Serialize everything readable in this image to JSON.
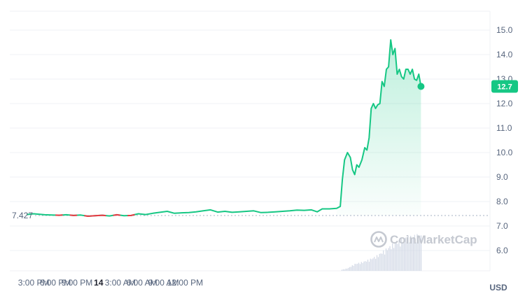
{
  "chart_data": {
    "type": "line",
    "x_ticks": [
      "3:00 PM",
      "6:00 PM",
      "9:00 PM",
      "14",
      "3:00 AM",
      "6:00 AM",
      "9:00 AM",
      "12:00 PM"
    ],
    "y_ticks": [
      "15.0",
      "14.0",
      "13.0",
      "12.0",
      "11.0",
      "10.0",
      "9.0",
      "8.0",
      "7.0",
      "6.0"
    ],
    "ylim": [
      5.0,
      15.9
    ],
    "unit_label": "USD",
    "reference_value": 7.427,
    "reference_label": "7.427",
    "current_value": 12.7,
    "current_label": "12.7",
    "watermark": "CoinMarketCap",
    "grid": true,
    "colors": {
      "up": "#16c784",
      "down": "#ea3943",
      "text": "#58667e",
      "grid": "#eff2f5"
    },
    "series": [
      {
        "values": [
          [
            14.5,
            7.47
          ],
          [
            15.5,
            7.5
          ],
          [
            17,
            7.46
          ],
          [
            18,
            7.45
          ],
          [
            19,
            7.44
          ],
          [
            20,
            7.46
          ],
          [
            21,
            7.43
          ],
          [
            22,
            7.45
          ],
          [
            23,
            7.4
          ],
          [
            24,
            7.42
          ],
          [
            25,
            7.44
          ],
          [
            26,
            7.41
          ],
          [
            27,
            7.46
          ],
          [
            28,
            7.42
          ],
          [
            29,
            7.43
          ],
          [
            30,
            7.5
          ],
          [
            31,
            7.47
          ],
          [
            32,
            7.52
          ],
          [
            33,
            7.56
          ],
          [
            34,
            7.6
          ],
          [
            35,
            7.52
          ],
          [
            36,
            7.54
          ],
          [
            37,
            7.55
          ],
          [
            38,
            7.58
          ],
          [
            39,
            7.62
          ],
          [
            40,
            7.66
          ],
          [
            41,
            7.57
          ],
          [
            42,
            7.6
          ],
          [
            43,
            7.56
          ],
          [
            44,
            7.58
          ],
          [
            45,
            7.6
          ],
          [
            46,
            7.62
          ],
          [
            47,
            7.55
          ],
          [
            48,
            7.56
          ],
          [
            49,
            7.58
          ],
          [
            50,
            7.6
          ],
          [
            51,
            7.62
          ],
          [
            52,
            7.65
          ],
          [
            53,
            7.64
          ],
          [
            54,
            7.66
          ],
          [
            54.8,
            7.58
          ],
          [
            55.5,
            7.7
          ],
          [
            56.5,
            7.7
          ],
          [
            57.5,
            7.72
          ],
          [
            58,
            7.8
          ],
          [
            58.3,
            8.9
          ],
          [
            58.6,
            9.7
          ],
          [
            59,
            10.0
          ],
          [
            59.4,
            9.8
          ],
          [
            59.7,
            9.3
          ],
          [
            60,
            9.1
          ],
          [
            60.3,
            9.5
          ],
          [
            60.6,
            9.4
          ],
          [
            61,
            9.7
          ],
          [
            61.4,
            10.2
          ],
          [
            61.7,
            10.1
          ],
          [
            62,
            10.6
          ],
          [
            62.3,
            11.8
          ],
          [
            62.6,
            12.0
          ],
          [
            62.9,
            11.8
          ],
          [
            63.2,
            11.95
          ],
          [
            63.5,
            12.0
          ],
          [
            63.8,
            12.9
          ],
          [
            64.1,
            12.7
          ],
          [
            64.4,
            13.4
          ],
          [
            64.7,
            13.5
          ],
          [
            65,
            14.6
          ],
          [
            65.3,
            14.0
          ],
          [
            65.6,
            14.25
          ],
          [
            65.9,
            13.2
          ],
          [
            66.2,
            13.4
          ],
          [
            66.5,
            13.1
          ],
          [
            66.8,
            13.0
          ],
          [
            67.1,
            13.4
          ],
          [
            67.4,
            13.4
          ],
          [
            67.7,
            13.2
          ],
          [
            68,
            13.4
          ],
          [
            68.3,
            13.0
          ],
          [
            68.6,
            12.95
          ],
          [
            68.9,
            13.2
          ],
          [
            69.2,
            12.7
          ]
        ]
      }
    ],
    "down_segments": [
      [
        18.5,
        19.5
      ],
      [
        20.5,
        21.5
      ],
      [
        22.5,
        25.5
      ],
      [
        26.5,
        27.5
      ],
      [
        28.5,
        29.5
      ]
    ],
    "volume": [
      [
        58,
        0.1
      ],
      [
        59,
        0.3
      ],
      [
        60,
        0.8
      ],
      [
        61,
        1.0
      ],
      [
        62,
        1.3
      ],
      [
        63,
        1.7
      ],
      [
        64,
        2.3
      ],
      [
        65,
        2.9
      ],
      [
        66,
        3.4
      ],
      [
        67,
        3.8
      ],
      [
        68,
        4.0
      ],
      [
        69.2,
        4.1
      ]
    ]
  }
}
